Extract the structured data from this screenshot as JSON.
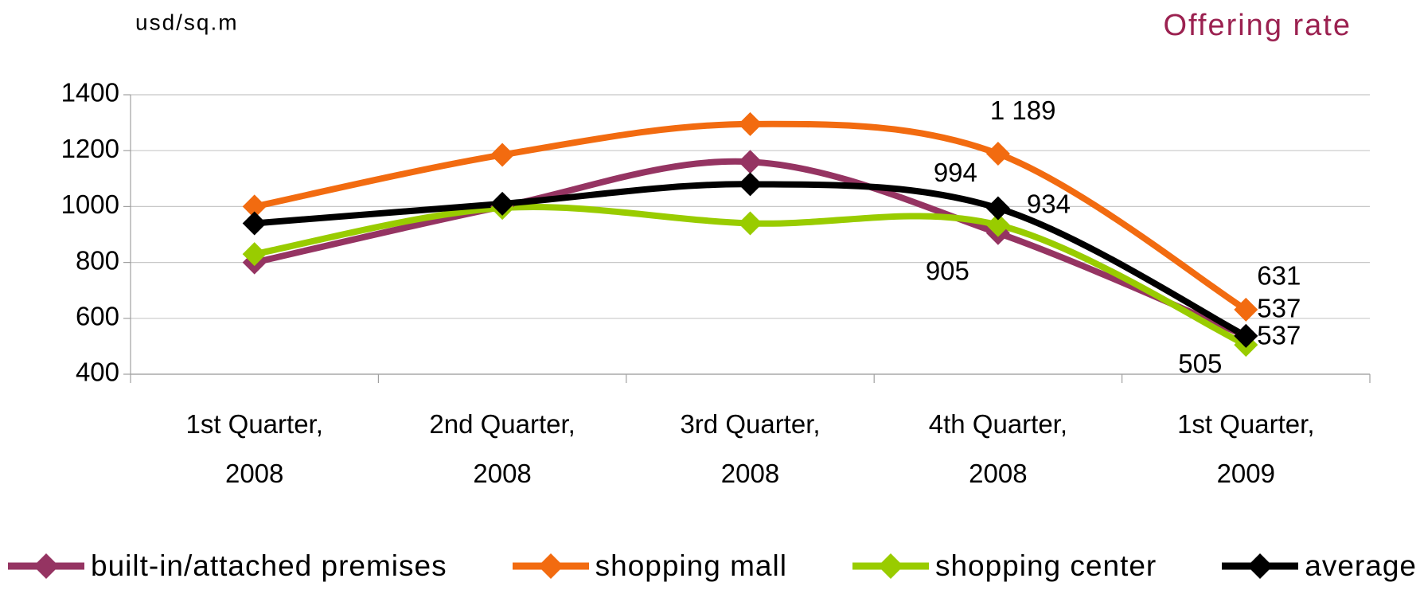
{
  "chart_data": {
    "type": "line",
    "title": "Offering rate",
    "y_label": "usd/sq.m",
    "categories": [
      "1st Quarter, 2008",
      "2nd Quarter, 2008",
      "3rd Quarter, 2008",
      "4th Quarter, 2008",
      "1st Quarter, 2009"
    ],
    "ylim": [
      400,
      1400
    ],
    "yticks": [
      400,
      600,
      800,
      1000,
      1200,
      1400
    ],
    "grid": true,
    "legend": "bottom",
    "series": [
      {
        "name": "built-in/attached premises",
        "color": "#953462",
        "values": [
          800,
          1000,
          1160,
          905,
          537
        ],
        "value_labels": [
          null,
          null,
          null,
          "905",
          "537"
        ]
      },
      {
        "name": "shopping mall",
        "color": "#f26b10",
        "values": [
          1000,
          1185,
          1295,
          1189,
          631
        ],
        "value_labels": [
          null,
          null,
          null,
          "1 189",
          "631"
        ]
      },
      {
        "name": "shopping center",
        "color": "#99cc00",
        "values": [
          830,
          995,
          940,
          934,
          505
        ],
        "value_labels": [
          null,
          null,
          null,
          "934",
          "505"
        ]
      },
      {
        "name": "average",
        "color": "#000000",
        "values": [
          940,
          1010,
          1080,
          994,
          537
        ],
        "value_labels": [
          null,
          null,
          null,
          "994",
          "537"
        ]
      }
    ]
  }
}
